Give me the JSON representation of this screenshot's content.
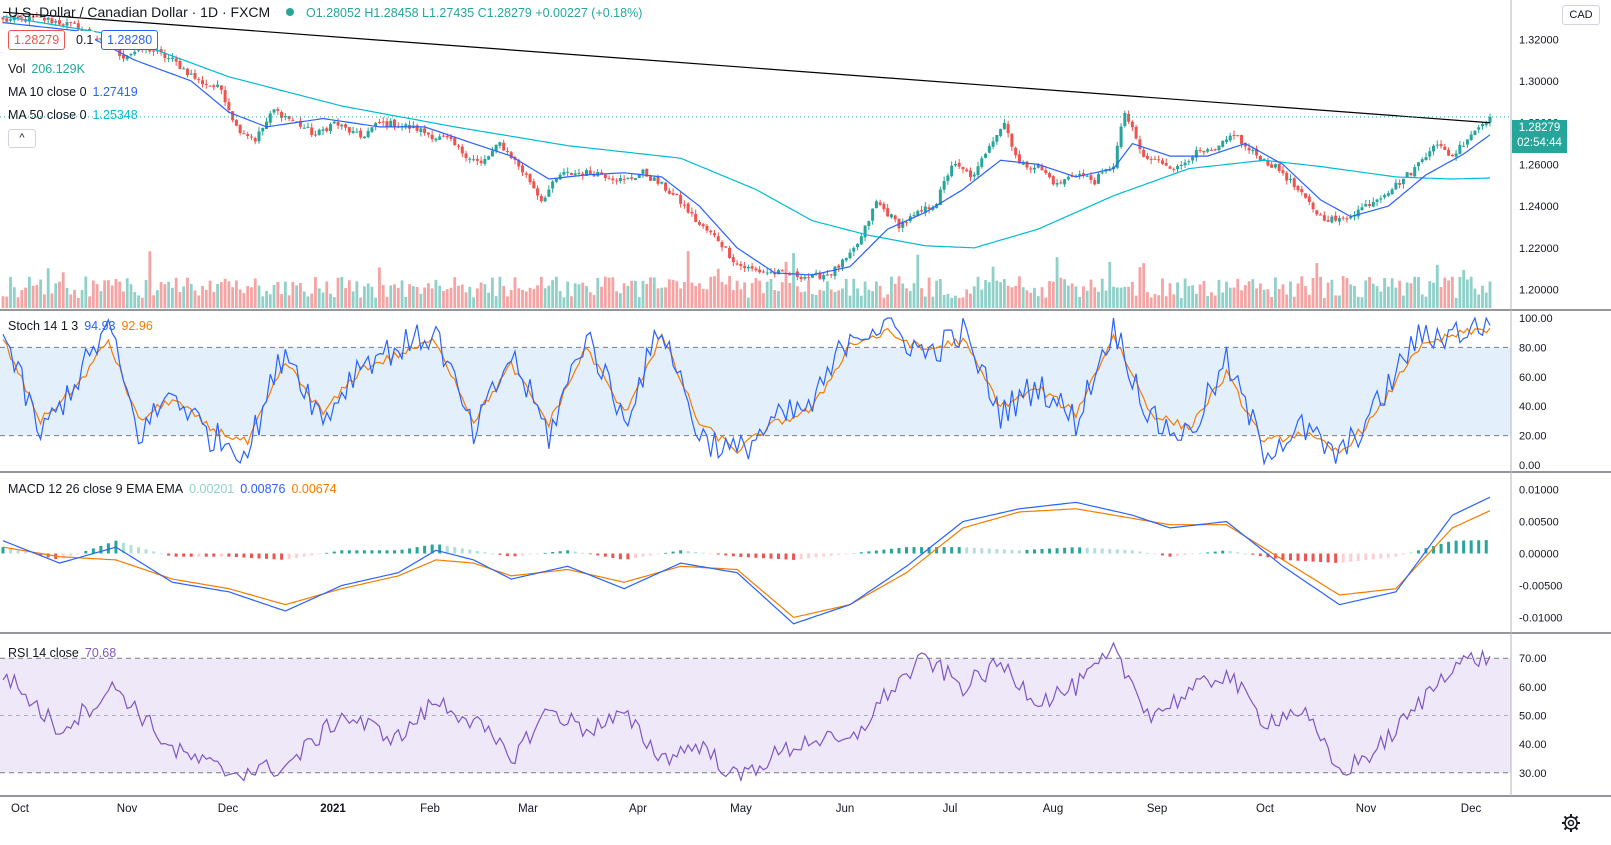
{
  "header": {
    "symbol": "U.S. Dollar / Canadian Dollar · 1D · FXCM",
    "ohlc": "O1.28052 H1.28458 L1.27435 C1.28279 +0.00227 (+0.18%)",
    "sell_price": "1.28279",
    "spread": "0.1",
    "buy_price": "1.28280",
    "currency": "CAD",
    "collapse_glyph": "^"
  },
  "legends": {
    "vol": {
      "label": "Vol",
      "value": "206.129K"
    },
    "ma10": {
      "label": "MA 10 close 0",
      "value": "1.27419"
    },
    "ma50": {
      "label": "MA 50 close 0",
      "value": "1.25348"
    },
    "stoch": {
      "label": "Stoch 14 1 3",
      "k": "94.93",
      "d": "92.96"
    },
    "macd": {
      "label": "MACD 12 26 close 9 EMA EMA",
      "hist": "0.00201",
      "macd": "0.00876",
      "signal": "0.00674"
    },
    "rsi": {
      "label": "RSI 14 close",
      "value": "70.68"
    }
  },
  "price_tags": {
    "last": "1.28279",
    "countdown": "02:54:44"
  },
  "time_axis": [
    "Oct",
    "Nov",
    "Dec",
    "2021",
    "Feb",
    "Mar",
    "Apr",
    "May",
    "Jun",
    "Jul",
    "Aug",
    "Sep",
    "Oct",
    "Nov",
    "Dec"
  ],
  "colors": {
    "up": "#26a69a",
    "down": "#ef5350",
    "vol_up": "#8fd1c9",
    "vol_down": "#f5a3a3",
    "ma10": "#2962ff",
    "ma50": "#00bcd4",
    "stoch_k": "#2962ff",
    "stoch_d": "#f57c00",
    "macd": "#2962ff",
    "signal": "#f57c00",
    "rsi": "#7e57c2",
    "trendline": "#000000"
  },
  "chart_data": [
    {
      "type": "candlestick",
      "title": "U.S. Dollar / Canadian Dollar · 1D · FXCM",
      "ylim": [
        1.195,
        1.335
      ],
      "yticks": [
        "1.20000",
        "1.22000",
        "1.24000",
        "1.26000",
        "1.28000",
        "1.30000",
        "1.32000"
      ],
      "close_path": [
        [
          0,
          1.329
        ],
        [
          10,
          1.33
        ],
        [
          20,
          1.326
        ],
        [
          27,
          1.318
        ],
        [
          32,
          1.312
        ],
        [
          38,
          1.316
        ],
        [
          45,
          1.31
        ],
        [
          52,
          1.3
        ],
        [
          58,
          1.296
        ],
        [
          62,
          1.278
        ],
        [
          67,
          1.272
        ],
        [
          72,
          1.286
        ],
        [
          78,
          1.28
        ],
        [
          83,
          1.274
        ],
        [
          88,
          1.28
        ],
        [
          95,
          1.273
        ],
        [
          100,
          1.28
        ],
        [
          105,
          1.279
        ],
        [
          110,
          1.277
        ],
        [
          115,
          1.273
        ],
        [
          118,
          1.272
        ],
        [
          122,
          1.266
        ],
        [
          127,
          1.26
        ],
        [
          132,
          1.27
        ],
        [
          135,
          1.264
        ],
        [
          140,
          1.252
        ],
        [
          143,
          1.243
        ],
        [
          148,
          1.255
        ],
        [
          153,
          1.256
        ],
        [
          158,
          1.256
        ],
        [
          165,
          1.252
        ],
        [
          170,
          1.256
        ],
        [
          175,
          1.25
        ],
        [
          180,
          1.242
        ],
        [
          185,
          1.231
        ],
        [
          190,
          1.224
        ],
        [
          195,
          1.212
        ],
        [
          200,
          1.209
        ],
        [
          205,
          1.208
        ],
        [
          210,
          1.207
        ],
        [
          215,
          1.206
        ],
        [
          220,
          1.208
        ],
        [
          225,
          1.216
        ],
        [
          228,
          1.225
        ],
        [
          232,
          1.242
        ],
        [
          238,
          1.231
        ],
        [
          242,
          1.235
        ],
        [
          248,
          1.242
        ],
        [
          252,
          1.26
        ],
        [
          258,
          1.254
        ],
        [
          262,
          1.27
        ],
        [
          266,
          1.28
        ],
        [
          270,
          1.26
        ],
        [
          275,
          1.259
        ],
        [
          280,
          1.25
        ],
        [
          285,
          1.256
        ],
        [
          290,
          1.252
        ],
        [
          295,
          1.26
        ],
        [
          298,
          1.285
        ],
        [
          303,
          1.263
        ],
        [
          308,
          1.261
        ],
        [
          312,
          1.258
        ],
        [
          316,
          1.265
        ],
        [
          322,
          1.266
        ],
        [
          327,
          1.275
        ],
        [
          330,
          1.268
        ],
        [
          335,
          1.262
        ],
        [
          340,
          1.256
        ],
        [
          345,
          1.245
        ],
        [
          350,
          1.235
        ],
        [
          355,
          1.233
        ],
        [
          360,
          1.238
        ],
        [
          365,
          1.244
        ],
        [
          370,
          1.25
        ],
        [
          375,
          1.258
        ],
        [
          380,
          1.27
        ],
        [
          385,
          1.264
        ],
        [
          390,
          1.275
        ],
        [
          393,
          1.2796
        ],
        [
          395,
          1.2828
        ]
      ],
      "ma10_path": [
        [
          0,
          1.328
        ],
        [
          20,
          1.324
        ],
        [
          35,
          1.31
        ],
        [
          50,
          1.3
        ],
        [
          60,
          1.285
        ],
        [
          70,
          1.278
        ],
        [
          85,
          1.282
        ],
        [
          100,
          1.278
        ],
        [
          112,
          1.278
        ],
        [
          125,
          1.27
        ],
        [
          135,
          1.264
        ],
        [
          145,
          1.253
        ],
        [
          155,
          1.255
        ],
        [
          165,
          1.256
        ],
        [
          175,
          1.254
        ],
        [
          185,
          1.24
        ],
        [
          195,
          1.22
        ],
        [
          205,
          1.208
        ],
        [
          215,
          1.207
        ],
        [
          225,
          1.211
        ],
        [
          235,
          1.229
        ],
        [
          245,
          1.237
        ],
        [
          255,
          1.248
        ],
        [
          265,
          1.262
        ],
        [
          275,
          1.26
        ],
        [
          285,
          1.254
        ],
        [
          295,
          1.258
        ],
        [
          300,
          1.27
        ],
        [
          310,
          1.264
        ],
        [
          320,
          1.264
        ],
        [
          330,
          1.27
        ],
        [
          340,
          1.26
        ],
        [
          350,
          1.243
        ],
        [
          358,
          1.235
        ],
        [
          368,
          1.24
        ],
        [
          378,
          1.255
        ],
        [
          388,
          1.265
        ],
        [
          395,
          1.2742
        ]
      ],
      "ma50_path": [
        [
          0,
          1.331
        ],
        [
          30,
          1.322
        ],
        [
          60,
          1.302
        ],
        [
          90,
          1.288
        ],
        [
          120,
          1.278
        ],
        [
          150,
          1.269
        ],
        [
          180,
          1.263
        ],
        [
          200,
          1.248
        ],
        [
          215,
          1.233
        ],
        [
          230,
          1.226
        ],
        [
          245,
          1.221
        ],
        [
          258,
          1.22
        ],
        [
          275,
          1.229
        ],
        [
          295,
          1.245
        ],
        [
          315,
          1.258
        ],
        [
          335,
          1.262
        ],
        [
          350,
          1.259
        ],
        [
          370,
          1.254
        ],
        [
          385,
          1.253
        ],
        [
          395,
          1.2535
        ]
      ],
      "trendline": [
        [
          0,
          1.333
        ],
        [
          395,
          1.28
        ]
      ]
    },
    {
      "type": "bar",
      "title": "Vol",
      "note": "daily volume histogram, latest 206.129K"
    },
    {
      "type": "line",
      "title": "Stoch 14 1 3",
      "ylim": [
        0,
        100
      ],
      "yticks": [
        "0.00",
        "20.00",
        "40.00",
        "60.00",
        "80.00",
        "100.00"
      ],
      "band": [
        20,
        80
      ],
      "k_path": [
        [
          0,
          90
        ],
        [
          10,
          20
        ],
        [
          20,
          60
        ],
        [
          28,
          95
        ],
        [
          36,
          20
        ],
        [
          45,
          50
        ],
        [
          55,
          20
        ],
        [
          65,
          10
        ],
        [
          75,
          80
        ],
        [
          85,
          30
        ],
        [
          95,
          70
        ],
        [
          105,
          80
        ],
        [
          115,
          90
        ],
        [
          125,
          20
        ],
        [
          135,
          75
        ],
        [
          145,
          20
        ],
        [
          155,
          90
        ],
        [
          165,
          30
        ],
        [
          175,
          95
        ],
        [
          185,
          20
        ],
        [
          195,
          8
        ],
        [
          205,
          30
        ],
        [
          215,
          40
        ],
        [
          225,
          90
        ],
        [
          235,
          95
        ],
        [
          245,
          75
        ],
        [
          255,
          90
        ],
        [
          265,
          35
        ],
        [
          275,
          55
        ],
        [
          285,
          30
        ],
        [
          295,
          95
        ],
        [
          305,
          30
        ],
        [
          315,
          20
        ],
        [
          325,
          70
        ],
        [
          335,
          10
        ],
        [
          345,
          25
        ],
        [
          355,
          5
        ],
        [
          365,
          40
        ],
        [
          375,
          85
        ],
        [
          385,
          90
        ],
        [
          395,
          94.93
        ]
      ],
      "d_path": [
        [
          0,
          85
        ],
        [
          10,
          30
        ],
        [
          20,
          55
        ],
        [
          28,
          85
        ],
        [
          36,
          30
        ],
        [
          45,
          45
        ],
        [
          55,
          25
        ],
        [
          65,
          15
        ],
        [
          75,
          70
        ],
        [
          85,
          35
        ],
        [
          95,
          65
        ],
        [
          105,
          75
        ],
        [
          115,
          85
        ],
        [
          125,
          30
        ],
        [
          135,
          68
        ],
        [
          145,
          28
        ],
        [
          155,
          80
        ],
        [
          165,
          35
        ],
        [
          175,
          88
        ],
        [
          185,
          28
        ],
        [
          195,
          10
        ],
        [
          205,
          28
        ],
        [
          215,
          38
        ],
        [
          225,
          82
        ],
        [
          235,
          90
        ],
        [
          245,
          78
        ],
        [
          255,
          85
        ],
        [
          265,
          40
        ],
        [
          275,
          52
        ],
        [
          285,
          35
        ],
        [
          295,
          88
        ],
        [
          305,
          35
        ],
        [
          315,
          25
        ],
        [
          325,
          62
        ],
        [
          335,
          15
        ],
        [
          345,
          22
        ],
        [
          355,
          8
        ],
        [
          365,
          35
        ],
        [
          375,
          78
        ],
        [
          385,
          88
        ],
        [
          395,
          92.96
        ]
      ]
    },
    {
      "type": "line",
      "title": "MACD 12 26 close 9 EMA EMA",
      "ylim": [
        -0.0115,
        0.0115
      ],
      "yticks": [
        "-0.01000",
        "-0.00500",
        "0.00000",
        "0.00500",
        "0.01000"
      ],
      "macd_path": [
        [
          0,
          0.002
        ],
        [
          15,
          -0.0015
        ],
        [
          30,
          0.001
        ],
        [
          45,
          -0.0045
        ],
        [
          60,
          -0.006
        ],
        [
          75,
          -0.009
        ],
        [
          90,
          -0.005
        ],
        [
          105,
          -0.003
        ],
        [
          115,
          0.0005
        ],
        [
          125,
          -0.001
        ],
        [
          135,
          -0.004
        ],
        [
          150,
          -0.002
        ],
        [
          165,
          -0.0055
        ],
        [
          180,
          -0.0015
        ],
        [
          195,
          -0.003
        ],
        [
          210,
          -0.011
        ],
        [
          225,
          -0.008
        ],
        [
          240,
          -0.002
        ],
        [
          255,
          0.005
        ],
        [
          270,
          0.007
        ],
        [
          285,
          0.008
        ],
        [
          300,
          0.006
        ],
        [
          310,
          0.004
        ],
        [
          325,
          0.005
        ],
        [
          340,
          -0.002
        ],
        [
          355,
          -0.008
        ],
        [
          370,
          -0.006
        ],
        [
          385,
          0.006
        ],
        [
          395,
          0.0088
        ]
      ],
      "signal_path": [
        [
          0,
          0.001
        ],
        [
          15,
          -0.0005
        ],
        [
          30,
          -0.001
        ],
        [
          45,
          -0.004
        ],
        [
          60,
          -0.0055
        ],
        [
          75,
          -0.008
        ],
        [
          90,
          -0.0055
        ],
        [
          105,
          -0.0035
        ],
        [
          115,
          -0.001
        ],
        [
          125,
          -0.0015
        ],
        [
          135,
          -0.0035
        ],
        [
          150,
          -0.0025
        ],
        [
          165,
          -0.0045
        ],
        [
          180,
          -0.002
        ],
        [
          195,
          -0.0025
        ],
        [
          210,
          -0.01
        ],
        [
          225,
          -0.008
        ],
        [
          240,
          -0.003
        ],
        [
          255,
          0.004
        ],
        [
          270,
          0.0065
        ],
        [
          285,
          0.007
        ],
        [
          300,
          0.0055
        ],
        [
          310,
          0.0045
        ],
        [
          325,
          0.0045
        ],
        [
          340,
          -0.001
        ],
        [
          355,
          -0.0065
        ],
        [
          370,
          -0.0055
        ],
        [
          385,
          0.004
        ],
        [
          395,
          0.0067
        ]
      ]
    },
    {
      "type": "line",
      "title": "RSI 14 close",
      "ylim": [
        24,
        76
      ],
      "yticks": [
        "30.00",
        "40.00",
        "50.00",
        "60.00",
        "70.00"
      ],
      "band": [
        30,
        70
      ],
      "rsi_path": [
        [
          0,
          65
        ],
        [
          15,
          45
        ],
        [
          30,
          60
        ],
        [
          45,
          38
        ],
        [
          60,
          30
        ],
        [
          75,
          32
        ],
        [
          90,
          50
        ],
        [
          105,
          42
        ],
        [
          115,
          55
        ],
        [
          125,
          48
        ],
        [
          135,
          35
        ],
        [
          145,
          52
        ],
        [
          155,
          45
        ],
        [
          165,
          50
        ],
        [
          175,
          35
        ],
        [
          185,
          40
        ],
        [
          195,
          28
        ],
        [
          205,
          36
        ],
        [
          215,
          42
        ],
        [
          225,
          40
        ],
        [
          235,
          58
        ],
        [
          245,
          70
        ],
        [
          255,
          60
        ],
        [
          265,
          68
        ],
        [
          275,
          55
        ],
        [
          285,
          60
        ],
        [
          295,
          72
        ],
        [
          305,
          50
        ],
        [
          315,
          58
        ],
        [
          325,
          65
        ],
        [
          335,
          48
        ],
        [
          345,
          52
        ],
        [
          355,
          30
        ],
        [
          365,
          38
        ],
        [
          375,
          52
        ],
        [
          385,
          68
        ],
        [
          395,
          70.68
        ]
      ]
    }
  ]
}
